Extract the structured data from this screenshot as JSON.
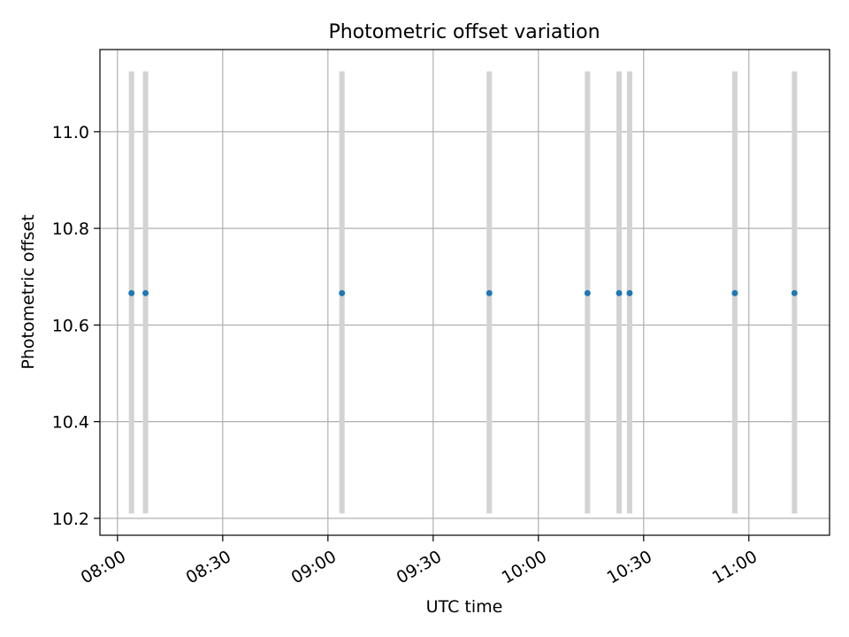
{
  "chart_data": {
    "type": "scatter",
    "title": "Photometric offset variation",
    "xlabel": "UTC time",
    "ylabel": "Photometric offset",
    "x_ticks": [
      "08:00",
      "08:30",
      "09:00",
      "09:30",
      "10:00",
      "10:30",
      "11:00"
    ],
    "y_ticks": [
      "10.2",
      "10.4",
      "10.6",
      "10.8",
      "11.0"
    ],
    "xlim": [
      "07:55",
      "11:23"
    ],
    "ylim": [
      10.165,
      11.17
    ],
    "grid": true,
    "points": [
      {
        "x": "08:04",
        "y": 10.666
      },
      {
        "x": "08:08",
        "y": 10.666
      },
      {
        "x": "09:04",
        "y": 10.666
      },
      {
        "x": "09:46",
        "y": 10.666
      },
      {
        "x": "10:14",
        "y": 10.666
      },
      {
        "x": "10:23",
        "y": 10.666
      },
      {
        "x": "10:26",
        "y": 10.666
      },
      {
        "x": "10:56",
        "y": 10.666
      },
      {
        "x": "11:13",
        "y": 10.666
      }
    ],
    "bands": [
      {
        "x": "08:04",
        "y_range": [
          10.21,
          11.125
        ]
      },
      {
        "x": "08:08",
        "y_range": [
          10.21,
          11.125
        ]
      },
      {
        "x": "09:04",
        "y_range": [
          10.21,
          11.125
        ]
      },
      {
        "x": "09:46",
        "y_range": [
          10.21,
          11.125
        ]
      },
      {
        "x": "10:14",
        "y_range": [
          10.21,
          11.125
        ]
      },
      {
        "x": "10:23",
        "y_range": [
          10.21,
          11.125
        ]
      },
      {
        "x": "10:26",
        "y_range": [
          10.21,
          11.125
        ]
      },
      {
        "x": "10:56",
        "y_range": [
          10.21,
          11.125
        ]
      },
      {
        "x": "11:13",
        "y_range": [
          10.21,
          11.125
        ]
      }
    ],
    "colors": {
      "point": "#1f77b4",
      "band": "#d3d3d3",
      "grid": "#b0b0b0",
      "axes": "#000000"
    }
  }
}
